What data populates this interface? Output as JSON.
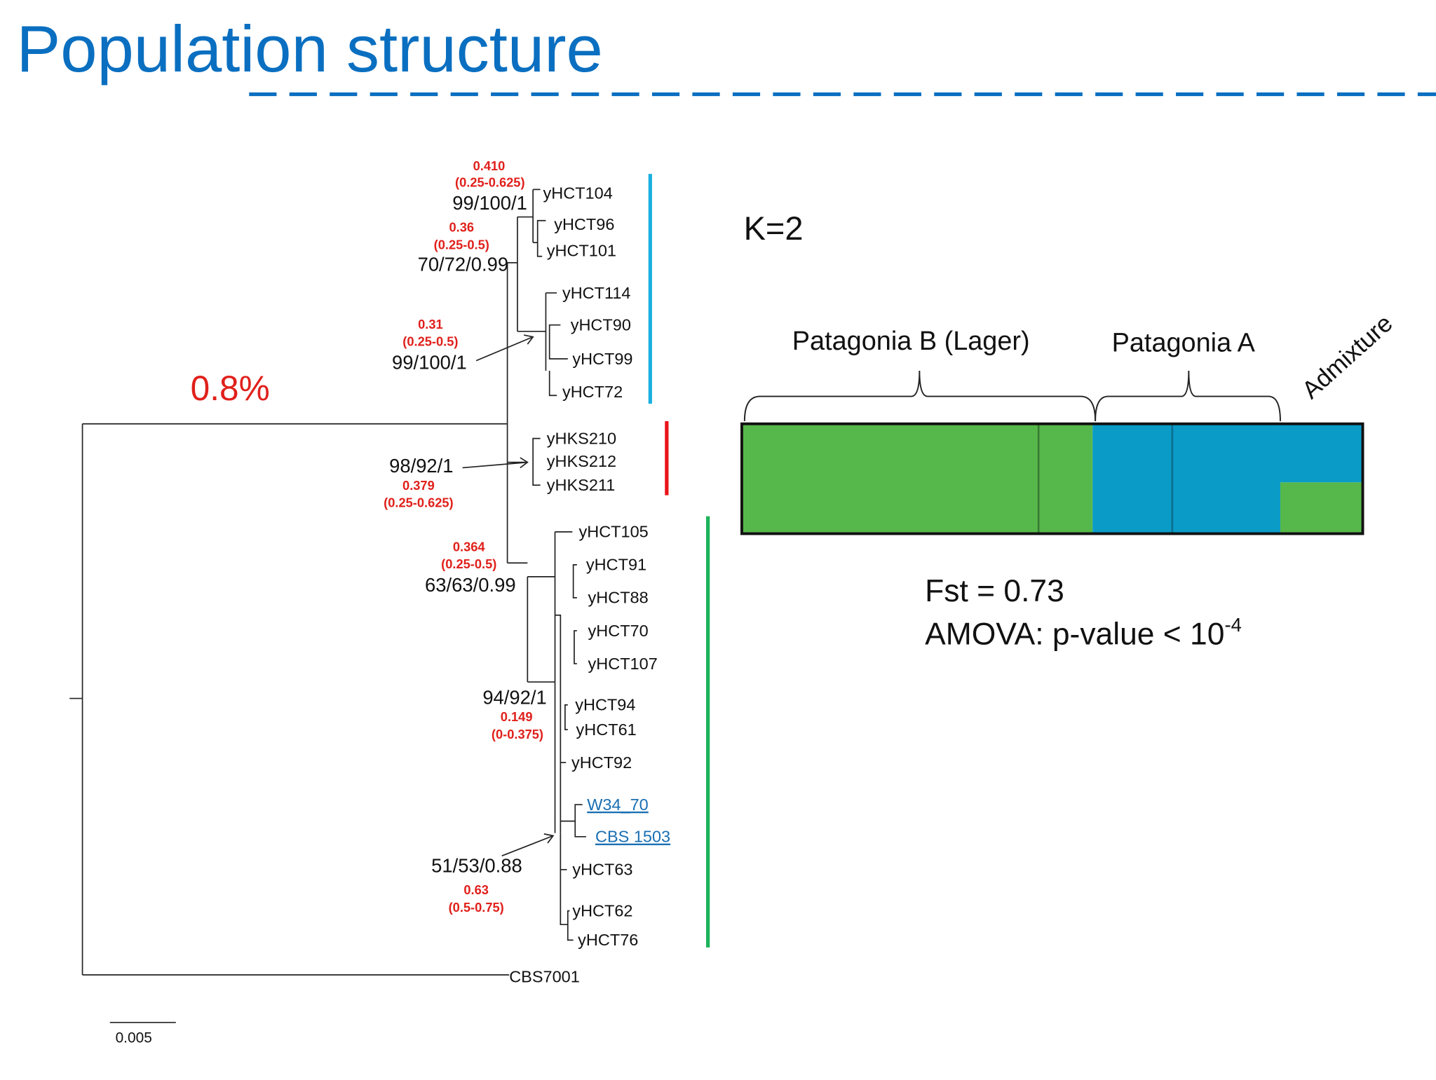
{
  "title": "Population structure",
  "divergence": "0.8%",
  "scale_bar": "0.005",
  "leaves": [
    "yHCT104",
    "yHCT96",
    "yHCT101",
    "yHCT114",
    "yHCT90",
    "yHCT99",
    "yHCT72",
    "yHKS210",
    "yHKS212",
    "yHKS211",
    "yHCT105",
    "yHCT91",
    "yHCT88",
    "yHCT70",
    "yHCT107",
    "yHCT94",
    "yHCT61",
    "yHCT92",
    "W34_70",
    "CBS 1503",
    "yHCT63",
    "yHCT62",
    "yHCT76",
    "CBS7001"
  ],
  "nodes": [
    {
      "support": "99/100/1",
      "height": "0.410",
      "interval": "(0.25-0.625)"
    },
    {
      "support": "70/72/0.99",
      "height": "0.36",
      "interval": "(0.25-0.5)"
    },
    {
      "support": "99/100/1",
      "height": "0.31",
      "interval": "(0.25-0.5)"
    },
    {
      "support": "98/92/1",
      "height": "0.379",
      "interval": "(0.25-0.625)"
    },
    {
      "support": "63/63/0.99",
      "height": "0.364",
      "interval": "(0.25-0.5)"
    },
    {
      "support": "94/92/1",
      "height": "0.149",
      "interval": "(0-0.375)"
    },
    {
      "support": "51/53/0.88",
      "height": "0.63",
      "interval": "(0.5-0.75)"
    }
  ],
  "structure": {
    "k": "K=2",
    "groups": [
      "Patagonia B (Lager)",
      "Patagonia A",
      "Admixture"
    ],
    "fst": "Fst = 0.73",
    "amova": "AMOVA: p-value < 10",
    "amova_exponent": "-4"
  }
}
